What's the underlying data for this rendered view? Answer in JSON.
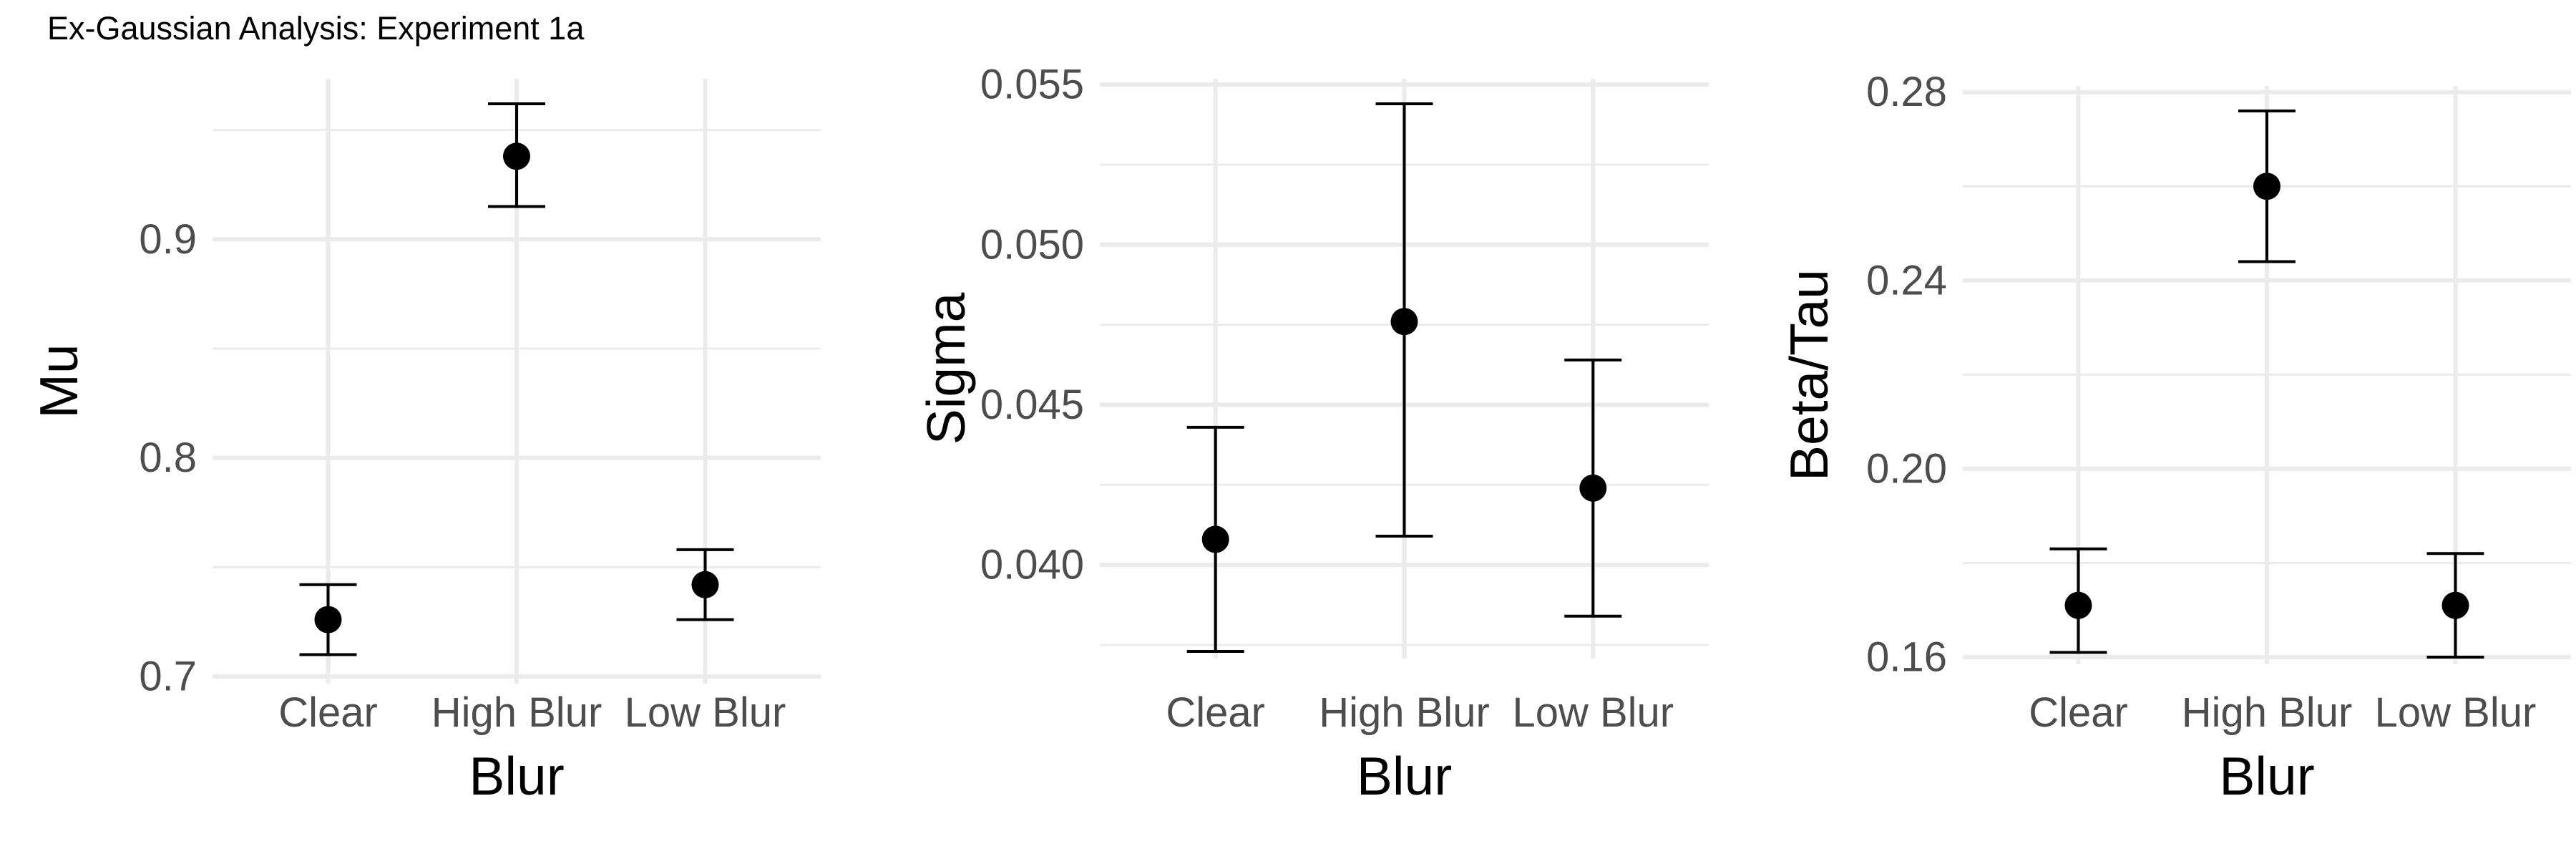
{
  "title": "Ex-Gaussian Analysis: Experiment 1a",
  "chart_data": [
    {
      "type": "scatter",
      "subtype": "point-with-errorbars",
      "xlabel": "Blur",
      "ylabel": "Mu",
      "categories": [
        "Clear",
        "High Blur",
        "Low Blur"
      ],
      "values": [
        0.726,
        0.938,
        0.742
      ],
      "lower": [
        0.71,
        0.915,
        0.726
      ],
      "upper": [
        0.742,
        0.962,
        0.758
      ],
      "ylim": [
        0.7,
        0.962
      ],
      "yticks": [
        0.7,
        0.8,
        0.9
      ],
      "ytick_labels": [
        "0.7",
        "0.8",
        "0.9"
      ],
      "yminor": [
        0.75,
        0.85,
        0.95
      ],
      "grid": true
    },
    {
      "type": "scatter",
      "subtype": "point-with-errorbars",
      "xlabel": "Blur",
      "ylabel": "Sigma",
      "categories": [
        "Clear",
        "High Blur",
        "Low Blur"
      ],
      "values": [
        0.0408,
        0.0476,
        0.0424
      ],
      "lower": [
        0.0373,
        0.0409,
        0.0384
      ],
      "upper": [
        0.0443,
        0.0544,
        0.0464
      ],
      "ylim": [
        0.0373,
        0.0544
      ],
      "yticks": [
        0.04,
        0.045,
        0.05,
        0.055
      ],
      "ytick_labels": [
        "0.040",
        "0.045",
        "0.050",
        "0.055"
      ],
      "yminor": [
        0.0375,
        0.0425,
        0.0475,
        0.0525
      ],
      "grid": true
    },
    {
      "type": "scatter",
      "subtype": "point-with-errorbars",
      "xlabel": "Blur",
      "ylabel": "Beta/Tau",
      "categories": [
        "Clear",
        "High Blur",
        "Low Blur"
      ],
      "values": [
        0.171,
        0.26,
        0.171
      ],
      "lower": [
        0.161,
        0.244,
        0.16
      ],
      "upper": [
        0.183,
        0.276,
        0.182
      ],
      "ylim": [
        0.16,
        0.276
      ],
      "yticks": [
        0.16,
        0.2,
        0.24,
        0.28
      ],
      "ytick_labels": [
        "0.16",
        "0.20",
        "0.24",
        "0.28"
      ],
      "yminor": [
        0.18,
        0.22,
        0.26
      ],
      "grid": true
    }
  ]
}
